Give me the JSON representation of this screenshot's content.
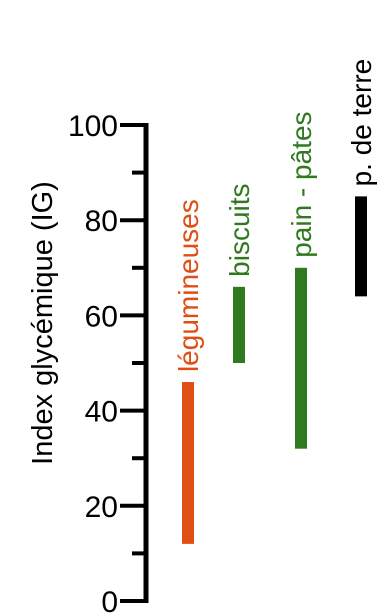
{
  "chart_data": {
    "type": "bar",
    "subtype": "floating-range",
    "orientation": "vertical",
    "title": "",
    "ylabel": "Index glycémique (IG)",
    "xlabel": "",
    "ylim": [
      0,
      100
    ],
    "y_ticks": [
      0,
      20,
      40,
      60,
      80,
      100
    ],
    "y_tick_labels": [
      "0",
      "20",
      "40",
      "60",
      "80",
      "100"
    ],
    "y_minor_ticks": [
      10,
      30,
      50,
      70,
      90
    ],
    "grid": false,
    "legend": "none",
    "categories": [
      "légumineuses",
      "biscuits",
      "pain - pâtes",
      "p. de terre"
    ],
    "series": [
      {
        "ranges": [
          {
            "category": "légumineuses",
            "low": 12,
            "high": 46,
            "color": "#e04e14"
          },
          {
            "category": "biscuits",
            "low": 50,
            "high": 66,
            "color": "#2f7a1e"
          },
          {
            "category": "pain - pâtes",
            "low": 32,
            "high": 70,
            "color": "#2f7a1e"
          },
          {
            "category": "p. de terre",
            "low": 64,
            "high": 85,
            "color": "#000000"
          }
        ]
      }
    ],
    "label_colors": {
      "légumineuses": "#e04e14",
      "biscuits": "#2f7a1e",
      "pain - pâtes": "#2f7a1e",
      "p. de terre": "#000000"
    }
  }
}
